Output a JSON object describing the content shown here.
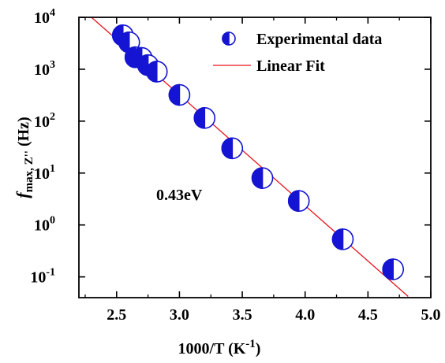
{
  "chart_data": {
    "type": "scatter",
    "xlabel": "1000/T (K",
    "xlabel_sup": "-1",
    "xlabel_end": ")",
    "ylabel_f": "f",
    "ylabel_sub": "max, Z''",
    "ylabel_unit": " (Hz)",
    "xlim": [
      2.2,
      5.0
    ],
    "ylim_log10": [
      -1.4,
      4
    ],
    "y_scale": "log",
    "x_ticks": [
      "2.5",
      "3.0",
      "3.5",
      "4.0",
      "4.5",
      "5.0"
    ],
    "x_tick_values": [
      2.5,
      3.0,
      3.5,
      4.0,
      4.5,
      5.0
    ],
    "y_tick_exponents": [
      -1,
      0,
      1,
      2,
      3,
      4
    ],
    "y_tick_base": "10",
    "legend_placement": "top-right",
    "annotation": "0.43eV",
    "colors": {
      "marker_fill": "#1414d2",
      "marker_edge": "#1414d2",
      "fit_line": "#e8141c",
      "axes": "#000000"
    },
    "series": [
      {
        "name": "Experimental data",
        "marker": "half-filled-circle",
        "x": [
          2.55,
          2.6,
          2.65,
          2.7,
          2.75,
          2.82,
          3.0,
          3.2,
          3.42,
          3.66,
          3.95,
          4.3,
          4.7
        ],
        "y": [
          4500,
          3300,
          1700,
          1650,
          1200,
          900,
          320,
          115,
          30,
          8,
          2.9,
          0.53,
          0.14
        ]
      },
      {
        "name": "Linear Fit",
        "type": "line",
        "x": [
          2.3,
          4.82
        ],
        "y": [
          10000,
          0.042
        ]
      }
    ]
  }
}
